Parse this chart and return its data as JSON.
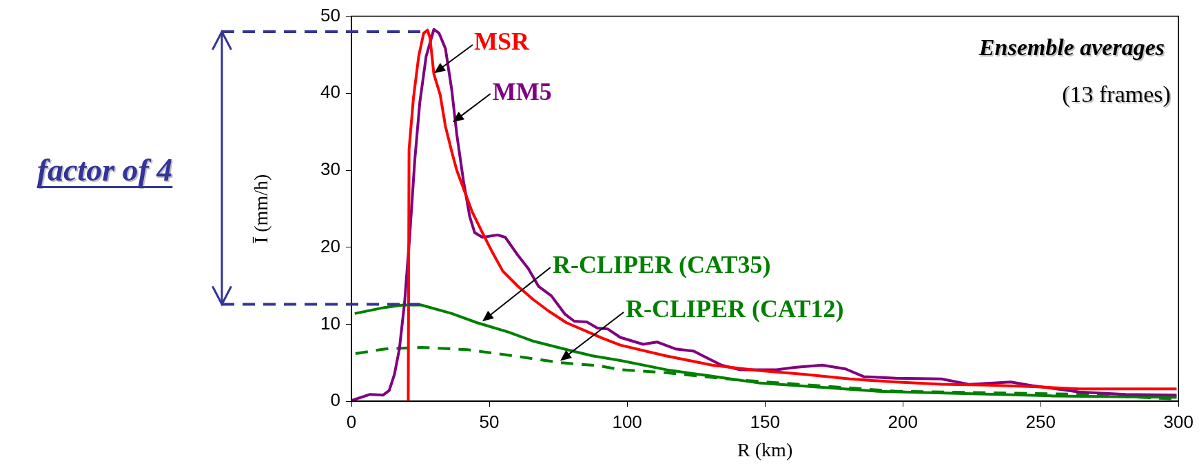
{
  "chart_data": {
    "type": "line",
    "xlabel": "R (km)",
    "ylabel": "Ī (mm/h)",
    "xlim": [
      0,
      300
    ],
    "xticks": [
      0,
      50,
      100,
      150,
      200,
      250,
      300
    ],
    "ylim": [
      0,
      50
    ],
    "yticks": [
      0,
      10,
      20,
      30,
      40,
      50
    ],
    "grid": false,
    "legend": false,
    "marker": "none",
    "annotations": [
      "Ensemble averages",
      "(13 frames)",
      "factor of 4"
    ],
    "ref_lines": [
      {
        "axis": "y",
        "value": 48,
        "label": null,
        "color": "#333399",
        "line_style": "dashed"
      },
      {
        "axis": "y",
        "value": 12.6,
        "label": null,
        "color": "#333399",
        "line_style": "dashed"
      }
    ],
    "series": [
      {
        "name": "MSR",
        "color": "#ff0000",
        "line_style": "solid",
        "x": [
          20.6,
          20.9,
          22.5,
          24.4,
          26.2,
          27.6,
          28.5,
          29.9,
          32.2,
          34.1,
          36.4,
          38.2,
          41,
          43.8,
          47.5,
          51.2,
          54.9,
          60.5,
          66,
          71.6,
          78,
          84.5,
          91,
          97.5,
          114,
          130.8,
          147.5,
          164,
          180.8,
          197.5,
          214,
          231,
          247.5,
          264,
          281,
          299.3
        ],
        "values": [
          0,
          32.7,
          39.4,
          44.8,
          47.8,
          48.2,
          47.2,
          42.5,
          39.8,
          35.7,
          32.4,
          30,
          27.3,
          24.6,
          21.9,
          19.3,
          16.9,
          14.9,
          13.2,
          11.7,
          10.2,
          9.2,
          8.2,
          7.3,
          5.9,
          4.7,
          4,
          3.5,
          2.9,
          2.5,
          2.2,
          2.1,
          1.9,
          1.6,
          1.6,
          1.6
        ]
      },
      {
        "name": "MM5",
        "color": "#800080",
        "line_style": "solid",
        "x": [
          0,
          6.8,
          11.4,
          13.7,
          15.6,
          17.4,
          19.3,
          21.1,
          23,
          24.8,
          27.1,
          29.9,
          31.8,
          34.1,
          36.4,
          38.2,
          40.6,
          42.9,
          44.7,
          47.5,
          53,
          55.8,
          60.5,
          64.2,
          67.9,
          72.5,
          77.5,
          80.8,
          85.4,
          89.2,
          92.9,
          97.5,
          105.8,
          110.8,
          117.5,
          124.2,
          134.2,
          140.8,
          154.2,
          160.8,
          170.8,
          179.2,
          185.8,
          197.5,
          214,
          224,
          239.2,
          247.5,
          264,
          280.8,
          299.3
        ],
        "values": [
          0.1,
          0.9,
          0.8,
          1.4,
          3.5,
          6.8,
          12.9,
          21.3,
          31.4,
          38.8,
          44.8,
          48.3,
          47.8,
          45.8,
          40.4,
          34.7,
          28.7,
          24,
          21.9,
          21.3,
          21.6,
          21.3,
          18.9,
          17.2,
          14.9,
          13.7,
          11.3,
          10.4,
          10.3,
          9.5,
          9.4,
          8.3,
          7.4,
          7.7,
          6.8,
          6.5,
          4.7,
          4.1,
          4.1,
          4.4,
          4.7,
          4.2,
          3.2,
          3,
          2.9,
          2.2,
          2.5,
          2,
          1.2,
          0.9,
          0.8
        ]
      },
      {
        "name": "R-CLIPER (CAT35)",
        "color": "#008000",
        "line_style": "solid",
        "x": [
          1.2,
          12.3,
          18.8,
          25.3,
          36.4,
          45.6,
          56.8,
          66,
          77.1,
          87.4,
          97.5,
          114.2,
          147.5,
          190.8,
          222.5,
          254,
          299.3
        ],
        "values": [
          11.4,
          12.2,
          12.5,
          12.5,
          11.4,
          10.2,
          9,
          7.8,
          6.8,
          5.9,
          5.3,
          4.1,
          2.4,
          1.3,
          1,
          0.7,
          0.5
        ]
      },
      {
        "name": "R-CLIPER (CAT12)",
        "color": "#008000",
        "line_style": "dashed",
        "x": [
          1.5,
          12.3,
          25.3,
          42,
          56.8,
          76.2,
          90.1,
          97.5,
          114.2,
          139.2,
          197.5,
          264,
          299.3
        ],
        "values": [
          6.2,
          6.8,
          7,
          6.7,
          6,
          5,
          4.6,
          4.1,
          3.7,
          2.8,
          1.3,
          0.9,
          0.3
        ]
      }
    ]
  }
}
